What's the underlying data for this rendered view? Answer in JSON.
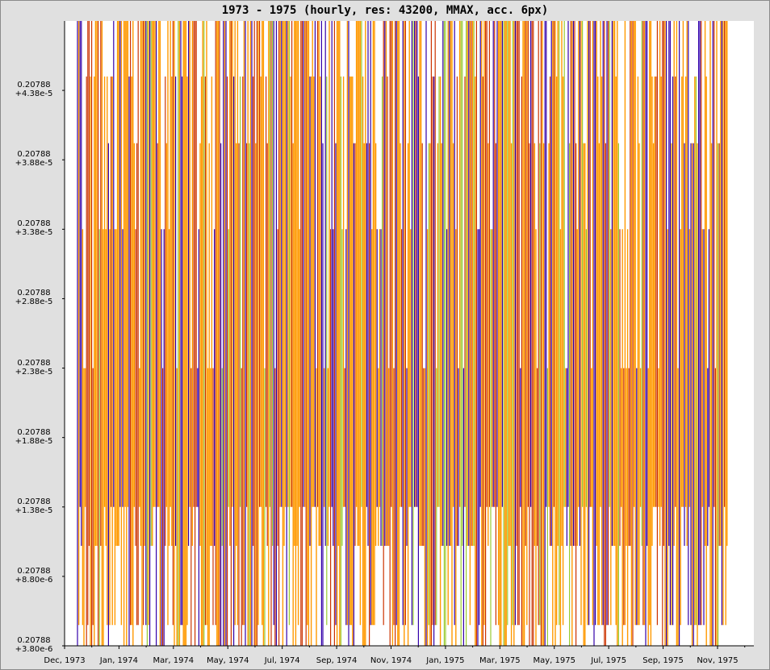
{
  "chart_data": {
    "type": "line",
    "title": "1973 - 1975 (hourly, res: 43200, MMAX, acc. 6px)",
    "xlabel": "",
    "ylabel": "",
    "x_tick_labels": [
      "Dec, 1973",
      "Jan, 1974",
      "Mar, 1974",
      "May, 1974",
      "Jul, 1974",
      "Sep, 1974",
      "Nov, 1974",
      "Jan, 1975",
      "Mar, 1975",
      "May, 1975",
      "Jul, 1975",
      "Sep, 1975",
      "Nov, 1975"
    ],
    "y_tick_labels": [
      {
        "line1": "0.20788",
        "line2": "+4.38e-5"
      },
      {
        "line1": "0.20788",
        "line2": "+3.88e-5"
      },
      {
        "line1": "0.20788",
        "line2": "+3.38e-5"
      },
      {
        "line1": "0.20788",
        "line2": "+2.88e-5"
      },
      {
        "line1": "0.20788",
        "line2": "+2.38e-5"
      },
      {
        "line1": "0.20788",
        "line2": "+1.88e-5"
      },
      {
        "line1": "0.20788",
        "line2": "+1.38e-5"
      },
      {
        "line1": "0.20788",
        "line2": "+8.80e-6"
      },
      {
        "line1": "0.20788",
        "line2": "+3.80e-6"
      }
    ],
    "y_offset": 0.20788,
    "ylim": [
      3.8e-06,
      4.88e-05
    ],
    "series_levels": [
      5.3e-06,
      1.1e-05,
      1.38e-05,
      2.38e-05,
      3.38e-05,
      4e-05,
      4.48e-05
    ],
    "series": [
      {
        "color": "#ff9900"
      },
      {
        "color": "#cc3300"
      },
      {
        "color": "#3300aa"
      },
      {
        "color": "#99cc33"
      }
    ],
    "grid": false,
    "legend": "none"
  }
}
